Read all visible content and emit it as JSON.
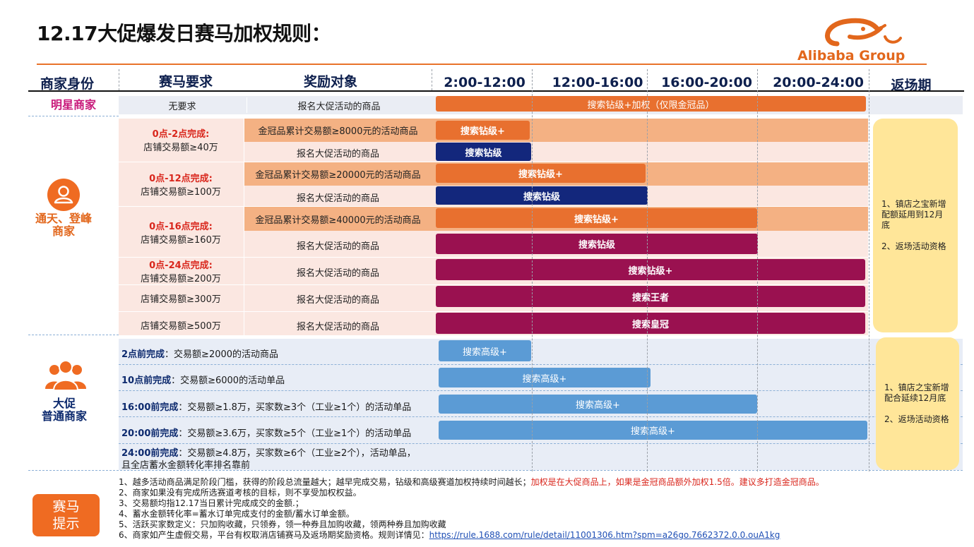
{
  "title": "12.17大促爆发日赛马加权规则：",
  "logo": {
    "text": "Alibaba Group",
    "icon": "alibaba-smile-icon"
  },
  "headers": {
    "identity": "商家身份",
    "requirement": "赛马要求",
    "target": "奖励对象",
    "t1": "2:00-12:00",
    "t2": "12:00-16:00",
    "t3": "16:00-20:00",
    "t4": "20:00-24:00",
    "return": "返场期"
  },
  "star": {
    "label": "明星商家",
    "requirement": "无要求",
    "target": "报名大促活动的商品",
    "bar": "搜索钻级+加权（仅限金冠品）"
  },
  "vip": {
    "label_line1": "通天、登峰",
    "label_line2": "商家",
    "groups": [
      {
        "cond": "0点-2点完成:",
        "req": "店铺交易额≥40万",
        "rows": [
          {
            "target": "金冠品累计交易额≥8000元的活动商品",
            "bar": "搜索钻级+"
          },
          {
            "target": "报名大促活动的商品",
            "bar": "搜索钻级"
          }
        ]
      },
      {
        "cond": "0点-12点完成:",
        "req": "店铺交易额≥100万",
        "rows": [
          {
            "target": "金冠品累计交易额≥20000元的活动商品",
            "bar": "搜索钻级+"
          },
          {
            "target": "报名大促活动的商品",
            "bar": "搜索钻级"
          }
        ]
      },
      {
        "cond": "0点-16点完成:",
        "req": "店铺交易额≥160万",
        "rows": [
          {
            "target": "金冠品累计交易额≥40000元的活动商品",
            "bar": "搜索钻级+"
          },
          {
            "target": "报名大促活动的商品",
            "bar": "搜索钻级"
          }
        ]
      },
      {
        "cond": "0点-24点完成:",
        "req": "店铺交易额≥200万",
        "rows": [
          {
            "target": "报名大促活动的商品",
            "bar": "搜索钻级+"
          }
        ]
      },
      {
        "cond": "",
        "req": "店铺交易额≥300万",
        "rows": [
          {
            "target": "报名大促活动的商品",
            "bar": "搜索王者"
          }
        ]
      },
      {
        "cond": "",
        "req": "店铺交易额≥500万",
        "rows": [
          {
            "target": "报名大促活动的商品",
            "bar": "搜索皇冠"
          }
        ]
      }
    ],
    "return_note": [
      "1、镇店之宝新增配额延用到12月底",
      "2、返场活动资格"
    ]
  },
  "regular": {
    "label_line1": "大促",
    "label_line2": "普通商家",
    "rows": [
      {
        "cond": "2点前完成",
        "req": "：交易额≥2000的活动商品",
        "bar": "搜索高级+"
      },
      {
        "cond": "10点前完成",
        "req": "：交易额≥6000的活动单品",
        "bar": "搜索高级+"
      },
      {
        "cond": "16:00前完成",
        "req": "：交易额≥1.8万，买家数≥3个（工业≥1个）的活动单品",
        "bar": "搜索高级+"
      },
      {
        "cond": "20:00前完成",
        "req": "：交易额≥3.6万，买家数≥5个（工业≥1个）的活动单品",
        "bar": "搜索高级+"
      },
      {
        "cond": "24:00前完成",
        "req": "：交易额≥4.8万，买家数≥6个（工业≥2个），活动单品，",
        "req2": "且全店蓄水金额转化率排名靠前",
        "bar": ""
      }
    ],
    "return_note": [
      "1、镇店之宝新增配合延续12月底",
      "2、返场活动资格"
    ]
  },
  "tip": {
    "line1": "赛马",
    "line2": "提示"
  },
  "notes": {
    "n1a": "1、越多活动商品满足阶段门槛，获得的阶段总流量越大；越早完成交易，钻级和高级赛道加权持续时间越长；",
    "n1b": "加权是在大促商品上，如果是金冠商品额外加权1.5倍。建议多打造金冠商品。",
    "n2": "2、商家如果没有完成所选赛道考核的目标，则不享受加权权益。",
    "n3": "3、交易额均指12.17当日累计完成成交的金额.；",
    "n4": "4、蓄水金额转化率=蓄水订单完成支付的金额/蓄水订单金额。",
    "n5": "5、活跃买家数定义：只加购收藏，只领券，领一种券且加购收藏，领两种券且加购收藏",
    "n6": "6、商家如产生虚假交易，平台有权取消店铺赛马及返场期奖励资格。规则详情见：",
    "link": "https://rule.1688.com/rule/detail/11001306.htm?spm=a26go.7662372.0.0.ouA1kg"
  },
  "colors": {
    "orange": "#e8702f",
    "navy": "#13277c",
    "purple": "#9a1150",
    "blue": "#5b9bd5",
    "yellow": "#ffe699"
  }
}
